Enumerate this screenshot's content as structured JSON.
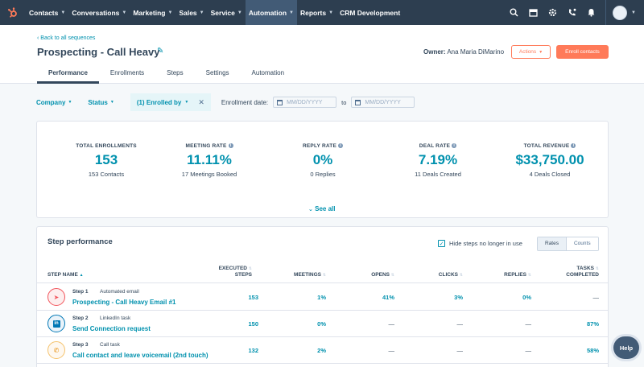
{
  "nav": {
    "items": [
      {
        "label": "Contacts",
        "active": false
      },
      {
        "label": "Conversations",
        "active": false
      },
      {
        "label": "Marketing",
        "active": false
      },
      {
        "label": "Sales",
        "active": false
      },
      {
        "label": "Service",
        "active": false
      },
      {
        "label": "Automation",
        "active": true
      },
      {
        "label": "Reports",
        "active": false
      },
      {
        "label": "CRM Development",
        "active": false
      }
    ],
    "right_icons": [
      "search-icon",
      "marketplace-icon",
      "settings-icon",
      "calling-icon",
      "notifications-icon"
    ]
  },
  "header": {
    "back_link": "Back to all sequences",
    "title": "Prospecting - Call Heavy",
    "owner_label": "Owner:",
    "owner_name": "Ana Maria DiMarino",
    "actions_label": "Actions",
    "enroll_label": "Enroll contacts"
  },
  "tabs": [
    "Performance",
    "Enrollments",
    "Steps",
    "Settings",
    "Automation"
  ],
  "filters": {
    "company": "Company",
    "status": "Status",
    "enrolled_by": "(1) Enrolled by",
    "enrollment_date_label": "Enrollment date:",
    "date_from_placeholder": "MM/DD/YYYY",
    "to_label": "to",
    "date_to_placeholder": "MM/DD/YYYY"
  },
  "stats": [
    {
      "label": "TOTAL ENROLLMENTS",
      "value": "153",
      "sub": "153 Contacts",
      "info": false
    },
    {
      "label": "MEETING RATE",
      "value": "11.11%",
      "sub": "17 Meetings Booked",
      "info": true
    },
    {
      "label": "REPLY RATE",
      "value": "0%",
      "sub": "0 Replies",
      "info": true
    },
    {
      "label": "DEAL RATE",
      "value": "7.19%",
      "sub": "11 Deals Created",
      "info": true
    },
    {
      "label": "TOTAL REVENUE",
      "value": "$33,750.00",
      "sub": "4 Deals Closed",
      "info": true
    }
  ],
  "see_all": "See all",
  "step_performance": {
    "title": "Step performance",
    "hide_steps_label": "Hide steps no longer in use",
    "toggle_rates": "Rates",
    "toggle_counts": "Counts",
    "columns": {
      "step_name": "STEP NAME",
      "executed_line1": "EXECUTED",
      "executed_line2": "STEPS",
      "meetings": "MEETINGS",
      "opens": "OPENS",
      "clicks": "CLICKS",
      "replies": "REPLIES",
      "tasks_line1": "TASKS",
      "tasks_line2": "COMPLETED"
    },
    "rows": [
      {
        "step": "Step 1",
        "type": "Automated email",
        "name": "Prospecting - Call Heavy Email #1",
        "icon": "email-icon",
        "color": "#f2545b",
        "executed": "153",
        "meetings": "1%",
        "opens": "41%",
        "clicks": "3%",
        "replies": "0%",
        "tasks": "—"
      },
      {
        "step": "Step 2",
        "type": "LinkedIn task",
        "name": "Send Connection request",
        "icon": "linkedin-icon",
        "color": "#0077b5",
        "executed": "150",
        "meetings": "0%",
        "opens": "—",
        "clicks": "—",
        "replies": "—",
        "tasks": "87%"
      },
      {
        "step": "Step 3",
        "type": "Call task",
        "name": "Call contact and leave voicemail (2nd touch)",
        "icon": "phone-icon",
        "color": "#f5c26b",
        "executed": "132",
        "meetings": "2%",
        "opens": "—",
        "clicks": "—",
        "replies": "—",
        "tasks": "58%"
      }
    ]
  },
  "help_label": "Help"
}
